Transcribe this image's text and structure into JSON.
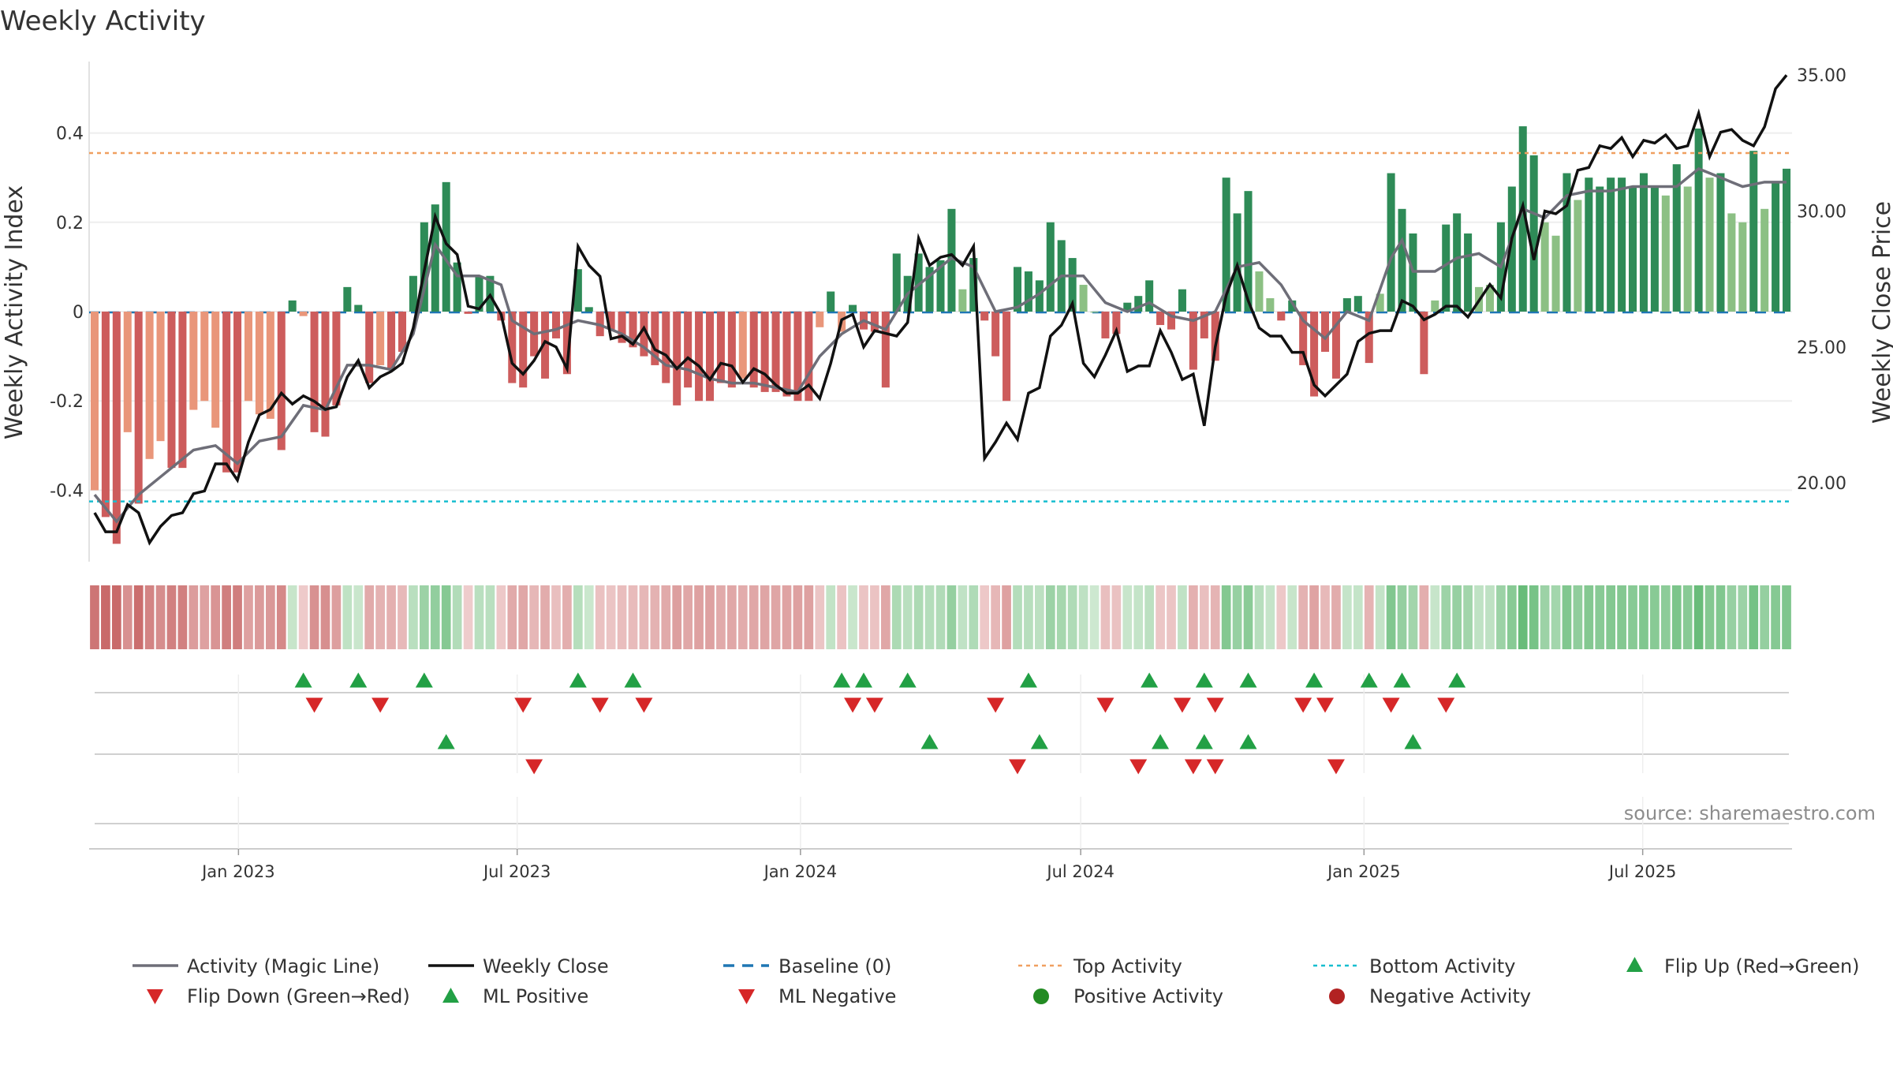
{
  "chart_data": {
    "type": "bar",
    "title": "Weekly Activity",
    "ylabel": "Weekly Activity Index",
    "y2label": "Weekly Close Price",
    "source": "source: sharemaestro.com",
    "ylim": [
      -0.56,
      0.56
    ],
    "y2lim": [
      17.1,
      35.5
    ],
    "y_ticks": [
      {
        "value": 0.4,
        "label": "0.4"
      },
      {
        "value": 0.2,
        "label": "0.2"
      },
      {
        "value": 0,
        "label": "0"
      },
      {
        "value": -0.2,
        "label": "-0.2"
      },
      {
        "value": -0.4,
        "label": "-0.4"
      }
    ],
    "y2_ticks": [
      {
        "value": 35,
        "label": "35.00"
      },
      {
        "value": 30,
        "label": "30.00"
      },
      {
        "value": 25,
        "label": "25.00"
      },
      {
        "value": 20,
        "label": "20.00"
      }
    ],
    "x_start": "2022-09-26",
    "x_end": "2025-10-06",
    "x_ticks": [
      {
        "date": "2023-01-01",
        "label": "Jan 2023"
      },
      {
        "date": "2023-07-01",
        "label": "Jul 2023"
      },
      {
        "date": "2024-01-01",
        "label": "Jan 2024"
      },
      {
        "date": "2024-07-01",
        "label": "Jul 2024"
      },
      {
        "date": "2025-01-01",
        "label": "Jan 2025"
      },
      {
        "date": "2025-07-01",
        "label": "Jul 2025"
      }
    ],
    "top_activity": 0.355,
    "bottom_activity": -0.425,
    "activity_keypoints": [
      [
        0,
        -0.4
      ],
      [
        2,
        -0.52
      ],
      [
        3,
        -0.27
      ],
      [
        4,
        -0.43
      ],
      [
        5,
        -0.33
      ],
      [
        6,
        -0.29
      ],
      [
        7,
        -0.35
      ],
      [
        8,
        -0.35
      ],
      [
        9,
        -0.22
      ],
      [
        10,
        -0.2
      ],
      [
        11,
        -0.26
      ],
      [
        12,
        -0.36
      ],
      [
        13,
        -0.36
      ],
      [
        14,
        -0.2
      ],
      [
        15,
        -0.23
      ],
      [
        16,
        -0.24
      ],
      [
        17,
        -0.31
      ],
      [
        18,
        0.025
      ],
      [
        19,
        -0.01
      ],
      [
        20,
        -0.27
      ],
      [
        21,
        -0.28
      ],
      [
        22,
        -0.21
      ],
      [
        23,
        0.055
      ],
      [
        24,
        0.015
      ],
      [
        25,
        -0.16
      ],
      [
        26,
        -0.12
      ],
      [
        27,
        -0.13
      ],
      [
        28,
        -0.09
      ],
      [
        29,
        0.08
      ],
      [
        30,
        0.2
      ],
      [
        31,
        0.24
      ],
      [
        32,
        0.29
      ],
      [
        33,
        0.11
      ],
      [
        34,
        -0.005
      ],
      [
        35,
        0.08
      ],
      [
        36,
        0.08
      ],
      [
        37,
        -0.02
      ],
      [
        38,
        -0.16
      ],
      [
        39,
        -0.17
      ],
      [
        40,
        -0.1
      ],
      [
        41,
        -0.15
      ],
      [
        42,
        -0.06
      ],
      [
        43,
        -0.14
      ],
      [
        44,
        0.095
      ],
      [
        45,
        0.01
      ],
      [
        46,
        -0.055
      ],
      [
        47,
        -0.04
      ],
      [
        48,
        -0.07
      ],
      [
        49,
        -0.08
      ],
      [
        50,
        -0.1
      ],
      [
        51,
        -0.12
      ],
      [
        52,
        -0.16
      ],
      [
        53,
        -0.21
      ],
      [
        54,
        -0.17
      ],
      [
        55,
        -0.2
      ],
      [
        56,
        -0.2
      ],
      [
        57,
        -0.16
      ],
      [
        58,
        -0.17
      ],
      [
        59,
        -0.15
      ],
      [
        60,
        -0.17
      ],
      [
        61,
        -0.18
      ],
      [
        62,
        -0.18
      ],
      [
        63,
        -0.19
      ],
      [
        64,
        -0.2
      ],
      [
        65,
        -0.2
      ],
      [
        66,
        -0.035
      ],
      [
        67,
        0.045
      ],
      [
        68,
        -0.045
      ],
      [
        69,
        0.015
      ],
      [
        70,
        -0.04
      ],
      [
        71,
        -0.045
      ],
      [
        72,
        -0.17
      ],
      [
        73,
        0.13
      ],
      [
        74,
        0.08
      ],
      [
        75,
        0.13
      ],
      [
        76,
        0.1
      ],
      [
        77,
        0.115
      ],
      [
        78,
        0.23
      ],
      [
        79,
        0.05
      ],
      [
        80,
        0.12
      ],
      [
        81,
        -0.02
      ],
      [
        82,
        -0.1
      ],
      [
        83,
        -0.2
      ],
      [
        84,
        0.1
      ],
      [
        85,
        0.09
      ],
      [
        86,
        0.07
      ],
      [
        87,
        0.2
      ],
      [
        88,
        0.16
      ],
      [
        89,
        0.12
      ],
      [
        90,
        0.06
      ],
      [
        91,
        0.0
      ],
      [
        92,
        -0.06
      ],
      [
        93,
        -0.05
      ],
      [
        94,
        0.02
      ],
      [
        95,
        0.035
      ],
      [
        96,
        0.07
      ],
      [
        97,
        -0.03
      ],
      [
        98,
        -0.04
      ],
      [
        99,
        0.05
      ],
      [
        100,
        -0.13
      ],
      [
        101,
        -0.06
      ],
      [
        102,
        -0.11
      ],
      [
        103,
        0.3
      ],
      [
        104,
        0.22
      ],
      [
        105,
        0.27
      ],
      [
        106,
        0.09
      ],
      [
        107,
        0.03
      ],
      [
        108,
        -0.02
      ],
      [
        109,
        0.025
      ],
      [
        110,
        -0.12
      ],
      [
        111,
        -0.19
      ],
      [
        112,
        -0.09
      ],
      [
        113,
        -0.15
      ],
      [
        114,
        0.03
      ],
      [
        115,
        0.035
      ],
      [
        116,
        -0.115
      ],
      [
        117,
        0.04
      ],
      [
        118,
        0.31
      ],
      [
        119,
        0.23
      ],
      [
        120,
        0.175
      ],
      [
        121,
        -0.14
      ],
      [
        122,
        0.025
      ],
      [
        123,
        0.195
      ],
      [
        124,
        0.22
      ],
      [
        125,
        0.175
      ],
      [
        126,
        0.055
      ],
      [
        127,
        0.06
      ],
      [
        128,
        0.2
      ],
      [
        129,
        0.28
      ],
      [
        130,
        0.415
      ],
      [
        131,
        0.35
      ],
      [
        132,
        0.2
      ],
      [
        133,
        0.17
      ],
      [
        134,
        0.31
      ],
      [
        135,
        0.25
      ],
      [
        136,
        0.3
      ],
      [
        137,
        0.28
      ],
      [
        138,
        0.3
      ],
      [
        139,
        0.3
      ],
      [
        140,
        0.28
      ],
      [
        141,
        0.31
      ],
      [
        142,
        0.28
      ],
      [
        143,
        0.26
      ],
      [
        144,
        0.33
      ],
      [
        145,
        0.28
      ],
      [
        146,
        0.41
      ],
      [
        147,
        0.3
      ],
      [
        148,
        0.31
      ],
      [
        149,
        0.22
      ],
      [
        150,
        0.2
      ],
      [
        151,
        0.36
      ],
      [
        152,
        0.23
      ],
      [
        153,
        0.29
      ],
      [
        154,
        0.32
      ]
    ],
    "magic_line_keypoints": [
      [
        0,
        -0.41
      ],
      [
        2,
        -0.47
      ],
      [
        4,
        -0.41
      ],
      [
        7,
        -0.35
      ],
      [
        9,
        -0.31
      ],
      [
        11,
        -0.3
      ],
      [
        13,
        -0.34
      ],
      [
        15,
        -0.29
      ],
      [
        17,
        -0.28
      ],
      [
        19,
        -0.21
      ],
      [
        21,
        -0.22
      ],
      [
        23,
        -0.12
      ],
      [
        25,
        -0.12
      ],
      [
        27,
        -0.13
      ],
      [
        29,
        -0.05
      ],
      [
        31,
        0.15
      ],
      [
        33,
        0.08
      ],
      [
        35,
        0.08
      ],
      [
        37,
        0.06
      ],
      [
        38,
        -0.02
      ],
      [
        40,
        -0.05
      ],
      [
        42,
        -0.04
      ],
      [
        44,
        -0.02
      ],
      [
        46,
        -0.03
      ],
      [
        48,
        -0.05
      ],
      [
        50,
        -0.08
      ],
      [
        52,
        -0.12
      ],
      [
        54,
        -0.13
      ],
      [
        56,
        -0.15
      ],
      [
        58,
        -0.16
      ],
      [
        60,
        -0.16
      ],
      [
        62,
        -0.17
      ],
      [
        64,
        -0.18
      ],
      [
        66,
        -0.1
      ],
      [
        68,
        -0.05
      ],
      [
        70,
        -0.02
      ],
      [
        72,
        -0.04
      ],
      [
        74,
        0.04
      ],
      [
        76,
        0.08
      ],
      [
        78,
        0.12
      ],
      [
        80,
        0.1
      ],
      [
        82,
        0.0
      ],
      [
        84,
        0.01
      ],
      [
        86,
        0.04
      ],
      [
        88,
        0.08
      ],
      [
        90,
        0.08
      ],
      [
        92,
        0.02
      ],
      [
        94,
        0.0
      ],
      [
        96,
        0.02
      ],
      [
        98,
        -0.01
      ],
      [
        100,
        -0.02
      ],
      [
        102,
        0.0
      ],
      [
        104,
        0.1
      ],
      [
        106,
        0.11
      ],
      [
        108,
        0.06
      ],
      [
        110,
        -0.02
      ],
      [
        112,
        -0.06
      ],
      [
        114,
        0.0
      ],
      [
        116,
        -0.02
      ],
      [
        118,
        0.12
      ],
      [
        119,
        0.16
      ],
      [
        120,
        0.09
      ],
      [
        122,
        0.09
      ],
      [
        124,
        0.12
      ],
      [
        126,
        0.13
      ],
      [
        128,
        0.1
      ],
      [
        130,
        0.23
      ],
      [
        132,
        0.21
      ],
      [
        134,
        0.26
      ],
      [
        136,
        0.27
      ],
      [
        138,
        0.27
      ],
      [
        140,
        0.28
      ],
      [
        142,
        0.28
      ],
      [
        144,
        0.28
      ],
      [
        146,
        0.32
      ],
      [
        148,
        0.3
      ],
      [
        150,
        0.28
      ],
      [
        152,
        0.29
      ],
      [
        154,
        0.29
      ]
    ],
    "weekly_close_keypoints": [
      [
        0,
        18.9
      ],
      [
        1,
        18.2
      ],
      [
        2,
        18.2
      ],
      [
        3,
        19.2
      ],
      [
        4,
        18.9
      ],
      [
        5,
        17.8
      ],
      [
        6,
        18.4
      ],
      [
        7,
        18.8
      ],
      [
        8,
        18.9
      ],
      [
        9,
        19.6
      ],
      [
        10,
        19.7
      ],
      [
        11,
        20.7
      ],
      [
        12,
        20.7
      ],
      [
        13,
        20.1
      ],
      [
        14,
        21.5
      ],
      [
        15,
        22.5
      ],
      [
        16,
        22.7
      ],
      [
        17,
        23.3
      ],
      [
        18,
        22.9
      ],
      [
        19,
        23.2
      ],
      [
        20,
        23.0
      ],
      [
        21,
        22.7
      ],
      [
        22,
        22.8
      ],
      [
        23,
        23.9
      ],
      [
        24,
        24.5
      ],
      [
        25,
        23.5
      ],
      [
        26,
        23.9
      ],
      [
        27,
        24.1
      ],
      [
        28,
        24.4
      ],
      [
        29,
        25.7
      ],
      [
        30,
        27.8
      ],
      [
        31,
        29.8
      ],
      [
        32,
        28.8
      ],
      [
        33,
        28.4
      ],
      [
        34,
        26.5
      ],
      [
        35,
        26.4
      ],
      [
        36,
        26.9
      ],
      [
        37,
        26.2
      ],
      [
        38,
        24.4
      ],
      [
        39,
        24.0
      ],
      [
        40,
        24.5
      ],
      [
        41,
        25.2
      ],
      [
        42,
        25.0
      ],
      [
        43,
        24.2
      ],
      [
        44,
        28.7
      ],
      [
        45,
        28.0
      ],
      [
        46,
        27.6
      ],
      [
        47,
        25.3
      ],
      [
        48,
        25.4
      ],
      [
        49,
        25.1
      ],
      [
        50,
        25.7
      ],
      [
        51,
        24.9
      ],
      [
        52,
        24.7
      ],
      [
        53,
        24.2
      ],
      [
        54,
        24.6
      ],
      [
        55,
        24.3
      ],
      [
        56,
        23.8
      ],
      [
        57,
        24.4
      ],
      [
        58,
        24.3
      ],
      [
        59,
        23.7
      ],
      [
        60,
        24.2
      ],
      [
        61,
        24.0
      ],
      [
        62,
        23.6
      ],
      [
        63,
        23.3
      ],
      [
        64,
        23.3
      ],
      [
        65,
        23.6
      ],
      [
        66,
        23.1
      ],
      [
        67,
        24.4
      ],
      [
        68,
        26.0
      ],
      [
        69,
        26.2
      ],
      [
        70,
        25.0
      ],
      [
        71,
        25.6
      ],
      [
        72,
        25.5
      ],
      [
        73,
        25.4
      ],
      [
        74,
        25.9
      ],
      [
        75,
        29.0
      ],
      [
        76,
        28.0
      ],
      [
        77,
        28.3
      ],
      [
        78,
        28.4
      ],
      [
        79,
        28.0
      ],
      [
        80,
        28.7
      ],
      [
        81,
        20.9
      ],
      [
        82,
        21.5
      ],
      [
        83,
        22.2
      ],
      [
        84,
        21.6
      ],
      [
        85,
        23.3
      ],
      [
        86,
        23.5
      ],
      [
        87,
        25.4
      ],
      [
        88,
        25.8
      ],
      [
        89,
        26.6
      ],
      [
        90,
        24.4
      ],
      [
        91,
        23.9
      ],
      [
        92,
        24.7
      ],
      [
        93,
        25.6
      ],
      [
        94,
        24.1
      ],
      [
        95,
        24.3
      ],
      [
        96,
        24.3
      ],
      [
        97,
        25.6
      ],
      [
        98,
        24.8
      ],
      [
        99,
        23.8
      ],
      [
        100,
        24.0
      ],
      [
        101,
        22.1
      ],
      [
        102,
        25.0
      ],
      [
        103,
        26.9
      ],
      [
        104,
        28.0
      ],
      [
        105,
        26.7
      ],
      [
        106,
        25.7
      ],
      [
        107,
        25.4
      ],
      [
        108,
        25.4
      ],
      [
        109,
        24.8
      ],
      [
        110,
        24.8
      ],
      [
        111,
        23.6
      ],
      [
        112,
        23.2
      ],
      [
        113,
        23.6
      ],
      [
        114,
        24.0
      ],
      [
        115,
        25.2
      ],
      [
        116,
        25.5
      ],
      [
        117,
        25.6
      ],
      [
        118,
        25.6
      ],
      [
        119,
        26.7
      ],
      [
        120,
        26.5
      ],
      [
        121,
        26.0
      ],
      [
        122,
        26.2
      ],
      [
        123,
        26.5
      ],
      [
        124,
        26.5
      ],
      [
        125,
        26.1
      ],
      [
        126,
        26.7
      ],
      [
        127,
        27.3
      ],
      [
        128,
        26.8
      ],
      [
        129,
        29.0
      ],
      [
        130,
        30.2
      ],
      [
        131,
        28.2
      ],
      [
        132,
        30.0
      ],
      [
        133,
        29.9
      ],
      [
        134,
        30.2
      ],
      [
        135,
        31.5
      ],
      [
        136,
        31.6
      ],
      [
        137,
        32.4
      ],
      [
        138,
        32.3
      ],
      [
        139,
        32.7
      ],
      [
        140,
        32.0
      ],
      [
        141,
        32.6
      ],
      [
        142,
        32.5
      ],
      [
        143,
        32.8
      ],
      [
        144,
        32.3
      ],
      [
        145,
        32.4
      ],
      [
        146,
        33.6
      ],
      [
        147,
        32.0
      ],
      [
        148,
        32.9
      ],
      [
        149,
        33.0
      ],
      [
        150,
        32.6
      ],
      [
        151,
        32.4
      ],
      [
        152,
        33.1
      ],
      [
        153,
        34.5
      ],
      [
        154,
        35.0
      ]
    ],
    "flip_up_weeks": [
      19,
      24,
      30,
      44,
      49,
      68,
      70,
      74,
      85,
      96,
      101,
      105,
      111,
      116,
      119,
      124
    ],
    "flip_down_weeks": [
      20,
      26,
      39,
      46,
      50,
      69,
      71,
      82,
      92,
      99,
      102,
      110,
      112,
      118,
      123
    ],
    "ml_positive_weeks": [
      32,
      76,
      86,
      97,
      101,
      105,
      120
    ],
    "ml_negative_weeks": [
      40,
      84,
      95,
      100,
      102,
      113
    ],
    "legend": [
      {
        "key": "magic",
        "label": "Activity (Magic Line)"
      },
      {
        "key": "close",
        "label": "Weekly Close"
      },
      {
        "key": "baseline",
        "label": "Baseline (0)"
      },
      {
        "key": "top",
        "label": "Top Activity"
      },
      {
        "key": "bottom",
        "label": "Bottom Activity"
      },
      {
        "key": "flipup",
        "label": "Flip Up (Red→Green)"
      },
      {
        "key": "flipdown",
        "label": "Flip Down (Green→Red)"
      },
      {
        "key": "mlpos",
        "label": "ML Positive"
      },
      {
        "key": "mlneg",
        "label": "ML Negative"
      },
      {
        "key": "posact",
        "label": "Positive Activity"
      },
      {
        "key": "negact",
        "label": "Negative Activity"
      }
    ],
    "colors": {
      "pos_strong": "#2e8b57",
      "pos_light": "#8cc084",
      "neg_strong": "#cd5c5c",
      "neg_light": "#e9967a",
      "magic": "#6e6e78",
      "close": "#111111",
      "baseline": "#1f77b4",
      "top": "#f0a060",
      "bottom": "#17becf",
      "marker_green": "#22a045",
      "marker_red": "#d62728",
      "pos_dot": "#228b22",
      "neg_dot": "#b22222"
    }
  }
}
